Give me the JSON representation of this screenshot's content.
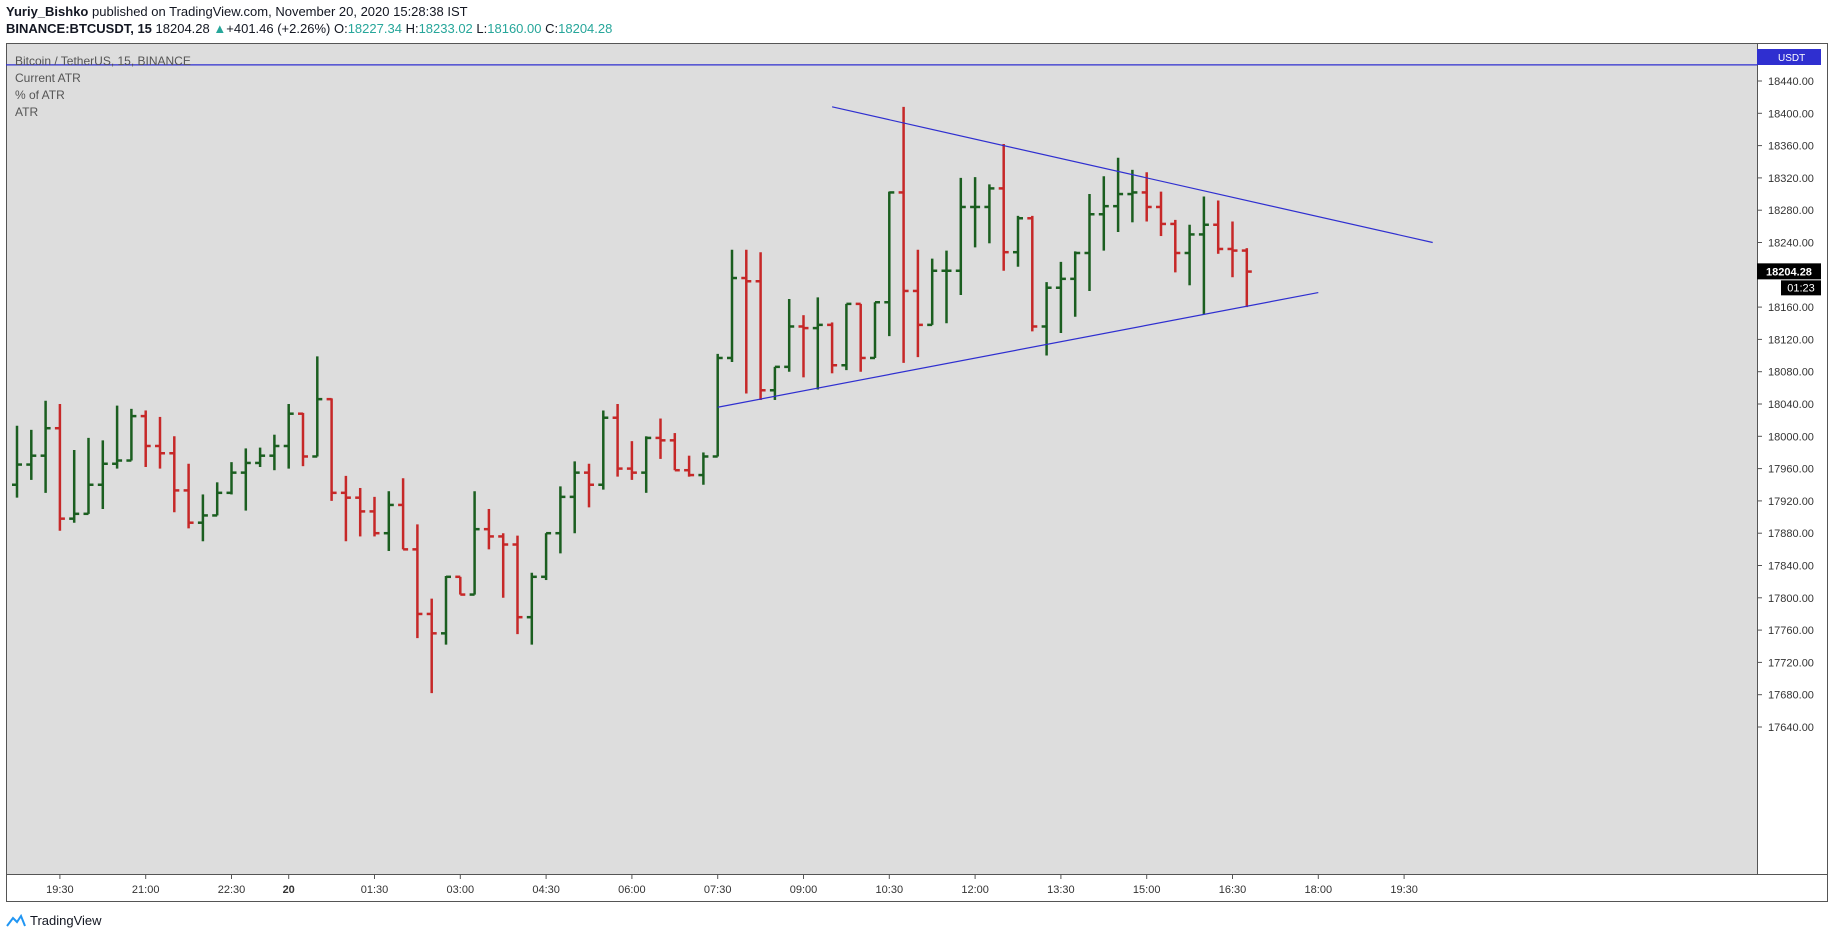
{
  "header": {
    "author": "Yuriy_Bishko",
    "published_text": "published on TradingView.com, November 20, 2020 15:28:38 IST",
    "symbol": "BINANCE:BTCUSDT, 15",
    "price": "18204.28",
    "change": "+401.46 (+2.26%)",
    "o_label": "O:",
    "o_value": "18227.34",
    "h_label": "H:",
    "h_value": "18233.02",
    "l_label": "L:",
    "l_value": "18160.00",
    "c_label": "C:",
    "c_value": "18204.28"
  },
  "legend": {
    "title": "Bitcoin / TetherUS, 15, BINANCE",
    "items": [
      "Current ATR",
      "% of ATR",
      "ATR"
    ]
  },
  "footer": {
    "brand": "TradingView"
  },
  "chart_data": {
    "type": "ohlc",
    "axis_currency": "USDT",
    "y_ticks": [
      18440,
      18400,
      18360,
      18320,
      18280,
      18240,
      18160,
      18120,
      18080,
      18040,
      18000,
      17960,
      17920,
      17880,
      17840,
      17800,
      17760,
      17720,
      17680,
      17640
    ],
    "x_ticks": [
      {
        "label": "19:30",
        "t": 3
      },
      {
        "label": "21:00",
        "t": 9
      },
      {
        "label": "22:30",
        "t": 15
      },
      {
        "label": "20",
        "t": 19
      },
      {
        "label": "01:30",
        "t": 25
      },
      {
        "label": "03:00",
        "t": 31
      },
      {
        "label": "04:30",
        "t": 37
      },
      {
        "label": "06:00",
        "t": 43
      },
      {
        "label": "07:30",
        "t": 49
      },
      {
        "label": "09:00",
        "t": 55
      },
      {
        "label": "10:30",
        "t": 61
      },
      {
        "label": "12:00",
        "t": 67
      },
      {
        "label": "13:30",
        "t": 73
      },
      {
        "label": "15:00",
        "t": 79
      },
      {
        "label": "16:30",
        "t": 85
      },
      {
        "label": "18:00",
        "t": 91
      },
      {
        "label": "19:30",
        "t": 97
      }
    ],
    "last_price_label": "18204.28",
    "countdown_label": "01:23",
    "bars": [
      {
        "o": 17940,
        "h": 18013,
        "l": 17924,
        "c": 17965
      },
      {
        "o": 17965,
        "h": 18008,
        "l": 17946,
        "c": 17976
      },
      {
        "o": 17976,
        "h": 18044,
        "l": 17930,
        "c": 18010
      },
      {
        "o": 18010,
        "h": 18040,
        "l": 17883,
        "c": 17898
      },
      {
        "o": 17898,
        "h": 17983,
        "l": 17893,
        "c": 17904
      },
      {
        "o": 17904,
        "h": 17998,
        "l": 17925,
        "c": 17940
      },
      {
        "o": 17940,
        "h": 17995,
        "l": 17910,
        "c": 17966
      },
      {
        "o": 17966,
        "h": 18038,
        "l": 17960,
        "c": 17970
      },
      {
        "o": 17970,
        "h": 18034,
        "l": 17980,
        "c": 18025
      },
      {
        "o": 18025,
        "h": 18032,
        "l": 17962,
        "c": 17988
      },
      {
        "o": 17988,
        "h": 18024,
        "l": 17960,
        "c": 17979
      },
      {
        "o": 17979,
        "h": 18000,
        "l": 17906,
        "c": 17933
      },
      {
        "o": 17933,
        "h": 17966,
        "l": 17886,
        "c": 17893
      },
      {
        "o": 17893,
        "h": 17928,
        "l": 17870,
        "c": 17902
      },
      {
        "o": 17902,
        "h": 17943,
        "l": 17910,
        "c": 17930
      },
      {
        "o": 17930,
        "h": 17968,
        "l": 17928,
        "c": 17955
      },
      {
        "o": 17955,
        "h": 17985,
        "l": 17908,
        "c": 17967
      },
      {
        "o": 17967,
        "h": 17986,
        "l": 17962,
        "c": 17976
      },
      {
        "o": 17976,
        "h": 18002,
        "l": 17958,
        "c": 17988
      },
      {
        "o": 17988,
        "h": 18040,
        "l": 17960,
        "c": 18028
      },
      {
        "o": 18028,
        "h": 18029,
        "l": 17963,
        "c": 17975
      },
      {
        "o": 17975,
        "h": 18099,
        "l": 17980,
        "c": 18046
      },
      {
        "o": 18046,
        "h": 18047,
        "l": 17920,
        "c": 17930
      },
      {
        "o": 17930,
        "h": 17951,
        "l": 17870,
        "c": 17924
      },
      {
        "o": 17924,
        "h": 17936,
        "l": 17876,
        "c": 17907
      },
      {
        "o": 17907,
        "h": 17925,
        "l": 17876,
        "c": 17880
      },
      {
        "o": 17880,
        "h": 17932,
        "l": 17858,
        "c": 17915
      },
      {
        "o": 17915,
        "h": 17948,
        "l": 17862,
        "c": 17860
      },
      {
        "o": 17860,
        "h": 17891,
        "l": 17750,
        "c": 17780
      },
      {
        "o": 17780,
        "h": 17799,
        "l": 17682,
        "c": 17756
      },
      {
        "o": 17756,
        "h": 17827,
        "l": 17742,
        "c": 17826
      },
      {
        "o": 17826,
        "h": 17826,
        "l": 17810,
        "c": 17804
      },
      {
        "o": 17804,
        "h": 17932,
        "l": 17813,
        "c": 17885
      },
      {
        "o": 17885,
        "h": 17910,
        "l": 17860,
        "c": 17876
      },
      {
        "o": 17876,
        "h": 17880,
        "l": 17800,
        "c": 17866
      },
      {
        "o": 17866,
        "h": 17877,
        "l": 17755,
        "c": 17776
      },
      {
        "o": 17776,
        "h": 17831,
        "l": 17742,
        "c": 17826
      },
      {
        "o": 17826,
        "h": 17874,
        "l": 17822,
        "c": 17880
      },
      {
        "o": 17880,
        "h": 17938,
        "l": 17855,
        "c": 17925
      },
      {
        "o": 17925,
        "h": 17969,
        "l": 17880,
        "c": 17955
      },
      {
        "o": 17955,
        "h": 17966,
        "l": 17912,
        "c": 17940
      },
      {
        "o": 17940,
        "h": 18032,
        "l": 17934,
        "c": 18023
      },
      {
        "o": 18023,
        "h": 18040,
        "l": 17950,
        "c": 17960
      },
      {
        "o": 17960,
        "h": 17994,
        "l": 17946,
        "c": 17955
      },
      {
        "o": 17955,
        "h": 18000,
        "l": 17930,
        "c": 17998
      },
      {
        "o": 17998,
        "h": 18022,
        "l": 17972,
        "c": 17995
      },
      {
        "o": 17995,
        "h": 18004,
        "l": 17958,
        "c": 17958
      },
      {
        "o": 17958,
        "h": 17976,
        "l": 17950,
        "c": 17952
      },
      {
        "o": 17952,
        "h": 17980,
        "l": 17940,
        "c": 17975
      },
      {
        "o": 17975,
        "h": 18102,
        "l": 17980,
        "c": 18097
      },
      {
        "o": 18097,
        "h": 18231,
        "l": 18092,
        "c": 18196
      },
      {
        "o": 18196,
        "h": 18231,
        "l": 18053,
        "c": 18192
      },
      {
        "o": 18192,
        "h": 18228,
        "l": 18045,
        "c": 18057
      },
      {
        "o": 18057,
        "h": 18082,
        "l": 18045,
        "c": 18086
      },
      {
        "o": 18086,
        "h": 18170,
        "l": 18080,
        "c": 18136
      },
      {
        "o": 18136,
        "h": 18150,
        "l": 18073,
        "c": 18134
      },
      {
        "o": 18134,
        "h": 18172,
        "l": 18058,
        "c": 18138
      },
      {
        "o": 18138,
        "h": 18141,
        "l": 18078,
        "c": 18088
      },
      {
        "o": 18088,
        "h": 18158,
        "l": 18082,
        "c": 18164
      },
      {
        "o": 18164,
        "h": 18161,
        "l": 18080,
        "c": 18097
      },
      {
        "o": 18097,
        "h": 18160,
        "l": 18097,
        "c": 18166
      },
      {
        "o": 18166,
        "h": 18303,
        "l": 18124,
        "c": 18302
      },
      {
        "o": 18302,
        "h": 18408,
        "l": 18091,
        "c": 18180
      },
      {
        "o": 18180,
        "h": 18231,
        "l": 18098,
        "c": 18138
      },
      {
        "o": 18138,
        "h": 18220,
        "l": 18141,
        "c": 18205
      },
      {
        "o": 18205,
        "h": 18230,
        "l": 18140,
        "c": 18205
      },
      {
        "o": 18205,
        "h": 18320,
        "l": 18175,
        "c": 18284
      },
      {
        "o": 18284,
        "h": 18321,
        "l": 18234,
        "c": 18284
      },
      {
        "o": 18284,
        "h": 18312,
        "l": 18239,
        "c": 18307
      },
      {
        "o": 18307,
        "h": 18362,
        "l": 18205,
        "c": 18228
      },
      {
        "o": 18228,
        "h": 18273,
        "l": 18210,
        "c": 18270
      },
      {
        "o": 18270,
        "h": 18273,
        "l": 18130,
        "c": 18136
      },
      {
        "o": 18136,
        "h": 18191,
        "l": 18100,
        "c": 18184
      },
      {
        "o": 18184,
        "h": 18216,
        "l": 18128,
        "c": 18195
      },
      {
        "o": 18195,
        "h": 18229,
        "l": 18148,
        "c": 18227
      },
      {
        "o": 18227,
        "h": 18300,
        "l": 18180,
        "c": 18275
      },
      {
        "o": 18275,
        "h": 18322,
        "l": 18230,
        "c": 18285
      },
      {
        "o": 18285,
        "h": 18345,
        "l": 18253,
        "c": 18300
      },
      {
        "o": 18300,
        "h": 18330,
        "l": 18265,
        "c": 18302
      },
      {
        "o": 18302,
        "h": 18327,
        "l": 18266,
        "c": 18284
      },
      {
        "o": 18284,
        "h": 18303,
        "l": 18248,
        "c": 18263
      },
      {
        "o": 18263,
        "h": 18268,
        "l": 18203,
        "c": 18227
      },
      {
        "o": 18227,
        "h": 18262,
        "l": 18187,
        "c": 18250
      },
      {
        "o": 18250,
        "h": 18297,
        "l": 18151,
        "c": 18262
      },
      {
        "o": 18262,
        "h": 18292,
        "l": 18226,
        "c": 18232
      },
      {
        "o": 18232,
        "h": 18266,
        "l": 18197,
        "c": 18230
      },
      {
        "o": 18230,
        "h": 18233,
        "l": 18160,
        "c": 18204
      }
    ],
    "horizontal_line": {
      "price": 18460
    },
    "trendlines": [
      {
        "t1": 57,
        "p1": 18408,
        "t2": 99,
        "p2": 18240
      },
      {
        "t1": 49,
        "p1": 18036,
        "t2": 91,
        "p2": 18178
      }
    ]
  }
}
